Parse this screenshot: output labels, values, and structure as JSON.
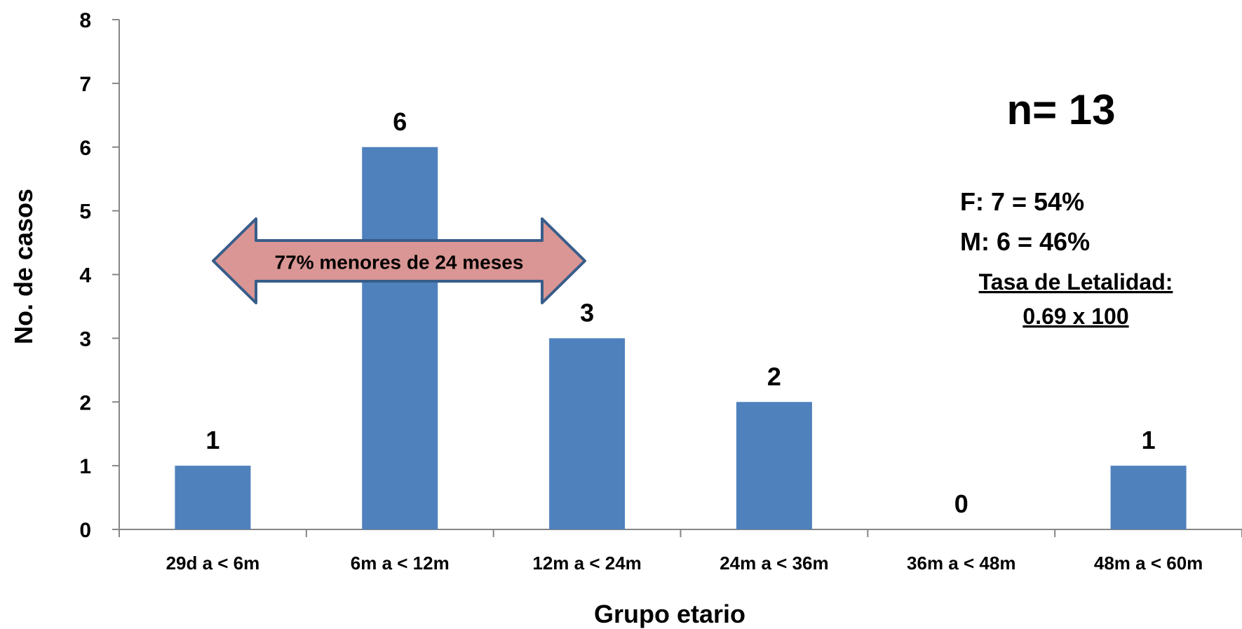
{
  "chart_data": {
    "type": "bar",
    "categories": [
      "29d a < 6m",
      "6m a < 12m",
      "12m a < 24m",
      "24m a < 36m",
      "36m a < 48m",
      "48m a < 60m"
    ],
    "values": [
      1,
      6,
      3,
      2,
      0,
      1
    ],
    "xlabel": "Grupo etario",
    "ylabel": "No. de casos",
    "ylim": [
      0,
      8
    ],
    "yticks": [
      0,
      1,
      2,
      3,
      4,
      5,
      6,
      7,
      8
    ],
    "grid": false,
    "bar_color": "#4F81BD",
    "annotations": {
      "n": "n= 13",
      "female": "F:  7  = 54%",
      "male": "M: 6 =  46%",
      "lethality_label": "Tasa de Letalidad:",
      "lethality_value": "0.69 x 100",
      "arrow_text": "77% menores de 24 meses",
      "arrow_color": "#D99694",
      "arrow_border": "#385D8A"
    }
  }
}
